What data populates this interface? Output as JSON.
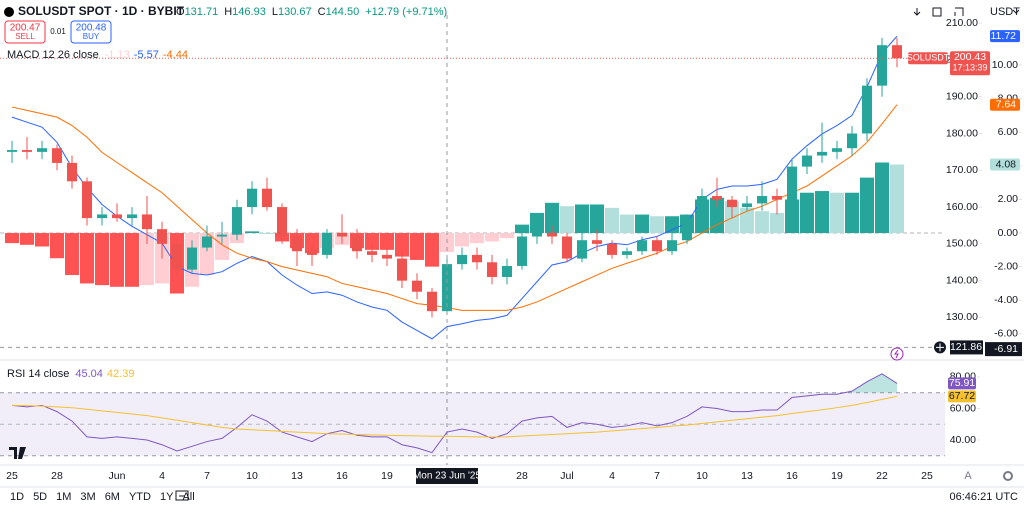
{
  "header": {
    "symbol": "SOLUSDT SPOT · 1D · BYBIT",
    "ohlc": [
      {
        "label": "O",
        "value": "131.71"
      },
      {
        "label": "H",
        "value": "146.93"
      },
      {
        "label": "L",
        "value": "130.67"
      },
      {
        "label": "C",
        "value": "144.50"
      }
    ],
    "change": "+12.79 (+9.71%)"
  },
  "trade": {
    "sell_price": "200.47",
    "sell": "SELL",
    "spread": "0.01",
    "buy_price": "200.48",
    "buy": "BUY"
  },
  "currency": "USDT",
  "toolbar": {
    "ranges": [
      "1D",
      "5D",
      "1M",
      "3M",
      "6M",
      "YTD",
      "1Y",
      "All"
    ],
    "clock": "06:46:21 UTC",
    "auto": "A"
  },
  "chart_data": [
    {
      "type": "candlestick",
      "categories": [
        "25",
        null,
        null,
        "28",
        null,
        null,
        null,
        "Jun",
        null,
        null,
        "4",
        null,
        null,
        "7",
        null,
        null,
        "10",
        null,
        null,
        "13",
        null,
        null,
        "16",
        null,
        null,
        "19",
        null,
        null,
        null,
        null,
        null,
        null,
        null,
        null,
        "28",
        null,
        null,
        "Jul",
        null,
        null,
        "4",
        null,
        null,
        "7",
        null,
        null,
        "10",
        null,
        null,
        "13",
        null,
        null,
        "16",
        null,
        null,
        "19",
        null,
        null,
        "22",
        null,
        null,
        "25"
      ],
      "open": [
        175,
        175.5,
        175,
        176,
        172,
        167,
        157,
        158,
        157,
        158,
        154,
        150,
        143,
        149,
        152,
        152.5,
        160,
        165,
        160,
        152,
        148,
        147,
        153,
        152,
        148,
        147,
        146,
        140,
        137,
        131.71,
        144.5,
        147,
        145,
        141,
        144,
        152,
        153,
        152,
        146,
        151,
        150,
        147,
        148,
        151,
        148,
        151,
        157,
        163,
        162,
        160,
        161,
        163,
        162,
        171,
        174,
        175,
        176,
        180,
        193,
        204,
        null,
        null
      ],
      "high": [
        178,
        179,
        178,
        177,
        174,
        168,
        160,
        161,
        160,
        163,
        156,
        152,
        151,
        155,
        156,
        162,
        167,
        168,
        161,
        154,
        150,
        154,
        158,
        154,
        150,
        149,
        148,
        142,
        138,
        146.93,
        149,
        149,
        147,
        146,
        154,
        156,
        155,
        153,
        153,
        154,
        151,
        149,
        152,
        152,
        153,
        158,
        165,
        168,
        163,
        163,
        167,
        165,
        173,
        176,
        183,
        178,
        182,
        195,
        206,
        206,
        null,
        null
      ],
      "low": [
        172,
        173,
        173,
        170,
        165,
        155,
        155,
        156,
        155,
        150,
        146,
        141,
        142,
        148,
        150,
        151,
        158,
        159,
        150,
        144,
        144,
        146,
        150,
        146,
        145,
        144,
        138,
        135,
        130,
        130.67,
        143,
        143,
        139,
        139,
        143,
        150,
        150,
        145,
        145,
        148,
        146,
        146,
        147,
        147,
        147,
        150,
        156,
        160,
        157,
        159,
        159,
        158,
        160,
        169,
        172,
        173,
        174,
        178,
        190,
        198,
        null,
        null
      ],
      "close": [
        175.5,
        175,
        176,
        172,
        167,
        157,
        158,
        157,
        158,
        154,
        150,
        143,
        149,
        152,
        152.5,
        160,
        165,
        160,
        152,
        148,
        147,
        153,
        152,
        148,
        147,
        146,
        140,
        137,
        131.71,
        144.5,
        147,
        145,
        141,
        144,
        152,
        153,
        152,
        146,
        151,
        150,
        147,
        148,
        151,
        148,
        151,
        157,
        163,
        162,
        160,
        161,
        163,
        162,
        171,
        174,
        175,
        176,
        180,
        193,
        204,
        200.43,
        null,
        null
      ],
      "up_color": "#26a69a",
      "down_color": "#ef5350",
      "symbol_badge": "SOLUSDT",
      "countdown": "17:13:39",
      "ylim": [
        119.8,
        212.2
      ],
      "yticks": [
        {
          "value": 130,
          "label": "130.00"
        },
        {
          "value": 140,
          "label": "140.00"
        },
        {
          "value": 150,
          "label": "150.00"
        },
        {
          "value": 160,
          "label": "160.00"
        },
        {
          "value": 170,
          "label": "170.00"
        },
        {
          "value": 180,
          "label": "180.00"
        },
        {
          "value": 190,
          "label": "190.00"
        },
        {
          "value": 200,
          "label": "200.00"
        },
        {
          "value": 210,
          "label": "210.00"
        }
      ],
      "grid": false,
      "crosshair": {
        "date": "Mon 23 Jun '25",
        "price": 121.86
      }
    },
    {
      "type": "macd",
      "title": "MACD 12 26 close",
      "histogram": {
        "colors": [
          "#26a69a",
          "#b2dfdb",
          "#ff5252",
          "#ffcdd2"
        ],
        "values": [
          -0.6,
          -0.7,
          -0.8,
          -1.5,
          -2.5,
          -3.0,
          -3.1,
          -3.2,
          -3.2,
          -3.1,
          -3.0,
          -3.6,
          -3.2,
          -2.5,
          -1.6,
          -0.6,
          0.1,
          0.0,
          -0.5,
          -0.9,
          -1.2,
          -0.9,
          -0.7,
          -0.9,
          -1.0,
          -1.0,
          -1.4,
          -1.6,
          -2.0,
          -1.13,
          -0.8,
          -0.6,
          -0.5,
          -0.3,
          0.5,
          1.2,
          1.8,
          1.6,
          1.7,
          1.7,
          1.5,
          1.1,
          1.1,
          1.0,
          1.0,
          1.1,
          2.0,
          2.1,
          1.9,
          1.5,
          1.3,
          1.2,
          2.0,
          2.4,
          2.5,
          2.4,
          2.4,
          3.3,
          4.2,
          4.08,
          null,
          null
        ]
      },
      "macd": {
        "color": "#2962ff",
        "values": [
          6.9,
          6.6,
          6.3,
          5.4,
          3.9,
          2.7,
          1.7,
          1.0,
          0.4,
          -0.1,
          -0.6,
          -2.0,
          -2.4,
          -2.5,
          -2.3,
          -1.8,
          -1.4,
          -1.7,
          -2.5,
          -3.1,
          -3.6,
          -3.5,
          -3.7,
          -4.1,
          -4.4,
          -4.6,
          -5.3,
          -5.8,
          -6.3,
          -5.57,
          -5.4,
          -5.2,
          -5.1,
          -4.9,
          -3.9,
          -2.9,
          -1.9,
          -1.7,
          -1.2,
          -0.8,
          -0.6,
          -0.7,
          -0.4,
          -0.2,
          0.2,
          0.6,
          2.0,
          2.6,
          2.8,
          2.8,
          2.9,
          3.2,
          4.4,
          5.2,
          5.9,
          6.4,
          7.0,
          8.7,
          10.7,
          11.72,
          null,
          null
        ]
      },
      "signal": {
        "color": "#ff6d00",
        "values": [
          7.5,
          7.3,
          7.1,
          6.9,
          6.4,
          5.7,
          4.8,
          4.2,
          3.6,
          3.0,
          2.4,
          1.6,
          0.8,
          0.0,
          -0.7,
          -1.2,
          -1.5,
          -1.7,
          -2.0,
          -2.2,
          -2.4,
          -2.6,
          -3.0,
          -3.2,
          -3.4,
          -3.6,
          -3.9,
          -4.2,
          -4.3,
          -4.44,
          -4.6,
          -4.6,
          -4.6,
          -4.6,
          -4.4,
          -4.1,
          -3.7,
          -3.3,
          -2.9,
          -2.5,
          -2.1,
          -1.8,
          -1.5,
          -1.2,
          -0.8,
          -0.5,
          0.0,
          0.5,
          0.9,
          1.3,
          1.6,
          2.0,
          2.4,
          2.8,
          3.4,
          4.0,
          4.6,
          5.4,
          6.5,
          7.64,
          null,
          null
        ]
      },
      "ylim": [
        -7.26,
        12.98
      ],
      "yticks": [
        {
          "value": -6,
          "label": "-6.00"
        },
        {
          "value": -4,
          "label": "-4.00"
        },
        {
          "value": -2,
          "label": "-2.00"
        },
        {
          "value": 0,
          "label": "0.00"
        },
        {
          "value": 2,
          "label": "2.00"
        },
        {
          "value": 4,
          "label": "4.00"
        },
        {
          "value": 6,
          "label": "6.00"
        },
        {
          "value": 8,
          "label": "8.00"
        },
        {
          "value": 10,
          "label": "10.00"
        }
      ],
      "crosshair": {
        "value": -6.91
      }
    },
    {
      "type": "line",
      "title": "RSI 14 close",
      "series": [
        {
          "color": "#7e57c2",
          "values": [
            62,
            61,
            62,
            58,
            52,
            42,
            41,
            42,
            41,
            40,
            37,
            33,
            36,
            39,
            41,
            48,
            56,
            52,
            45,
            42,
            39,
            44,
            46,
            43,
            42,
            42,
            37,
            35,
            32,
            45.04,
            47,
            45,
            41,
            44,
            52,
            54,
            55,
            48,
            51,
            50,
            48,
            49,
            51,
            49,
            51,
            55,
            61,
            60,
            58,
            58,
            59,
            59,
            67,
            68,
            69,
            69,
            71,
            77,
            82,
            75.91,
            null,
            null
          ]
        },
        {
          "color": "#f5c02e",
          "values": [
            62,
            61.8,
            61.5,
            61,
            60.5,
            59.5,
            58.5,
            57.5,
            56.5,
            55.5,
            54,
            52.5,
            51,
            49.5,
            48,
            47,
            46.5,
            46,
            45.5,
            45,
            44.5,
            44,
            43.8,
            43.5,
            43.2,
            43,
            42.8,
            42.6,
            42.4,
            42.39,
            42.2,
            42,
            41.9,
            42,
            42.5,
            43,
            43.5,
            44,
            44.5,
            45,
            45.8,
            46.5,
            47.2,
            48,
            48.8,
            49.5,
            50.5,
            51.5,
            52.5,
            53.5,
            54.5,
            55.5,
            56.8,
            58,
            59.2,
            60.5,
            62,
            63.8,
            65.8,
            67.72,
            null,
            null
          ]
        }
      ],
      "ylim": [
        27.3,
        89.5
      ],
      "yticks": [
        {
          "value": 40,
          "label": "40.00"
        },
        {
          "value": 60,
          "label": "60.00"
        },
        {
          "value": 80,
          "label": "80.00"
        }
      ],
      "band": [
        30,
        70
      ],
      "midline": 50,
      "band_color": "#7e57c2",
      "overbought_color": "#26a69a"
    }
  ]
}
